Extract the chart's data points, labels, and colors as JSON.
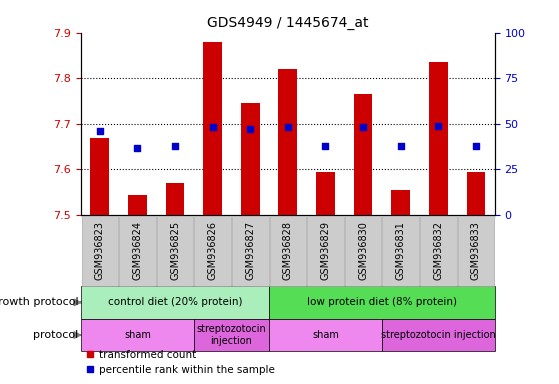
{
  "title": "GDS4949 / 1445674_at",
  "samples": [
    "GSM936823",
    "GSM936824",
    "GSM936825",
    "GSM936826",
    "GSM936827",
    "GSM936828",
    "GSM936829",
    "GSM936830",
    "GSM936831",
    "GSM936832",
    "GSM936833"
  ],
  "transformed_count": [
    7.67,
    7.545,
    7.57,
    7.88,
    7.745,
    7.82,
    7.595,
    7.765,
    7.555,
    7.835,
    7.595
  ],
  "percentile_rank": [
    46,
    37,
    38,
    48,
    47,
    48,
    38,
    48,
    38,
    49,
    38
  ],
  "ylim": [
    7.5,
    7.9
  ],
  "yticks_left": [
    7.5,
    7.6,
    7.7,
    7.8,
    7.9
  ],
  "yticks_right": [
    0,
    25,
    50,
    75,
    100
  ],
  "bar_color": "#cc0000",
  "marker_color": "#0000cc",
  "bar_bottom": 7.5,
  "growth_groups": [
    {
      "label": "control diet (20% protein)",
      "start": 0,
      "end": 4,
      "color": "#aaeebb"
    },
    {
      "label": "low protein diet (8% protein)",
      "start": 5,
      "end": 10,
      "color": "#55dd55"
    }
  ],
  "proto_groups": [
    {
      "label": "sham",
      "start": 0,
      "end": 2,
      "color": "#ee88ee"
    },
    {
      "label": "streptozotocin\ninjection",
      "start": 3,
      "end": 4,
      "color": "#dd66dd"
    },
    {
      "label": "sham",
      "start": 5,
      "end": 7,
      "color": "#ee88ee"
    },
    {
      "label": "streptozotocin injection",
      "start": 8,
      "end": 10,
      "color": "#dd66dd"
    }
  ],
  "left_label_color": "#cc0000",
  "right_label_color": "#0000cc",
  "tick_label_bg": "#cccccc",
  "tick_label_edge": "#aaaaaa"
}
